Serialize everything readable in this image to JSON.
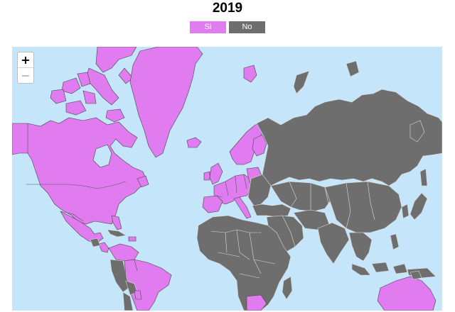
{
  "title": "2019",
  "legend": {
    "yes_label": "Si",
    "no_label": "No",
    "yes_color": "#e07cf0",
    "no_color": "#6e6e6e"
  },
  "map": {
    "ocean_color": "#c5e6fa",
    "zoom_in_label": "+",
    "zoom_out_label": "−"
  }
}
